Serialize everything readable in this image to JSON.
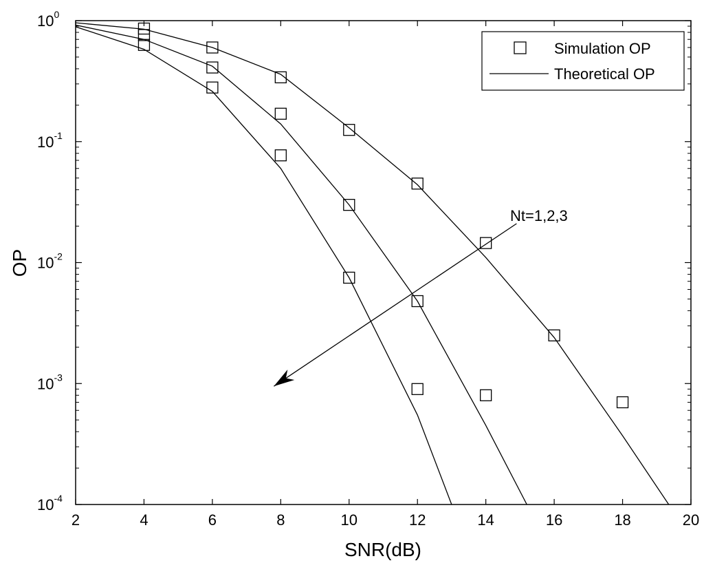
{
  "chart_data": {
    "type": "line",
    "xlabel": "SNR(dB)",
    "ylabel": "OP",
    "xlim": [
      2,
      20
    ],
    "ylim": [
      0.0001,
      1
    ],
    "yscale": "log",
    "x_ticks": [
      "2",
      "4",
      "6",
      "8",
      "10",
      "12",
      "14",
      "16",
      "18",
      "20"
    ],
    "y_ticks": [
      {
        "value": 1,
        "base": "10",
        "exp": "0"
      },
      {
        "value": 0.1,
        "base": "10",
        "exp": "-1"
      },
      {
        "value": 0.01,
        "base": "10",
        "exp": "-2"
      },
      {
        "value": 0.001,
        "base": "10",
        "exp": "-3"
      },
      {
        "value": 0.0001,
        "base": "10",
        "exp": "-4"
      }
    ],
    "grid": false,
    "legend": {
      "position": "top-right",
      "entries": [
        {
          "label": "Simulation OP",
          "marker": "square"
        },
        {
          "label": "Theoretical OP",
          "marker": "line"
        }
      ]
    },
    "annotation": {
      "text": "Nt=1,2,3",
      "arrow_from": [
        14.9,
        0.021
      ],
      "arrow_to": [
        7.8,
        0.00095
      ]
    },
    "series": [
      {
        "theory": {
          "x": [
            2,
            4,
            6,
            8,
            10,
            12,
            14,
            16,
            18,
            19.35
          ],
          "y": [
            0.96,
            0.85,
            0.6,
            0.36,
            0.13,
            0.044,
            0.011,
            0.0024,
            0.00037,
            0.0001
          ]
        },
        "sim": {
          "x": [
            4,
            6,
            8,
            10,
            12,
            14,
            16,
            18
          ],
          "y": [
            0.86,
            0.6,
            0.34,
            0.125,
            0.045,
            0.0145,
            0.0025,
            0.0007
          ]
        }
      },
      {
        "theory": {
          "x": [
            2,
            4,
            6,
            8,
            10,
            12,
            14,
            15.2
          ],
          "y": [
            0.92,
            0.7,
            0.42,
            0.14,
            0.03,
            0.0048,
            0.00045,
            0.0001
          ]
        },
        "sim": {
          "x": [
            4,
            6,
            8,
            10,
            12,
            14
          ],
          "y": [
            0.76,
            0.41,
            0.17,
            0.03,
            0.0048,
            0.0008
          ]
        }
      },
      {
        "theory": {
          "x": [
            2,
            4,
            6,
            8,
            10,
            12,
            13
          ],
          "y": [
            0.89,
            0.58,
            0.26,
            0.06,
            0.0075,
            0.00055,
            0.0001
          ]
        },
        "sim": {
          "x": [
            4,
            6,
            8,
            10,
            12
          ],
          "y": [
            0.63,
            0.28,
            0.077,
            0.0075,
            0.0009
          ]
        }
      }
    ]
  }
}
